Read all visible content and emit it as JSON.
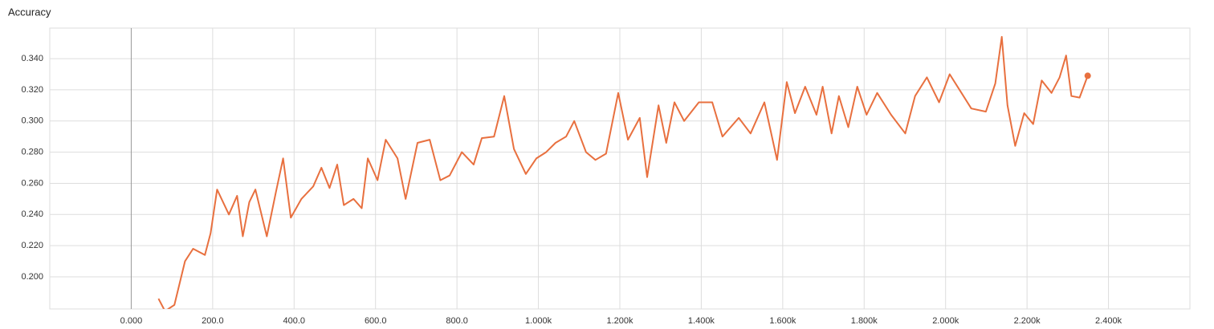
{
  "chart_data": {
    "type": "line",
    "title": "Accuracy",
    "color": "#e8703f",
    "grid": true,
    "x": [
      67,
      83,
      106,
      132,
      152,
      181,
      195,
      211,
      240,
      260,
      274,
      290,
      305,
      333,
      355,
      373,
      392,
      418,
      447,
      467,
      487,
      506,
      522,
      546,
      566,
      581,
      605,
      625,
      654,
      674,
      703,
      733,
      759,
      782,
      812,
      841,
      861,
      891,
      916,
      940,
      969,
      995,
      1019,
      1042,
      1068,
      1088,
      1117,
      1140,
      1166,
      1196,
      1220,
      1249,
      1267,
      1295,
      1314,
      1334,
      1358,
      1394,
      1427,
      1452,
      1492,
      1521,
      1555,
      1586,
      1610,
      1630,
      1655,
      1683,
      1698,
      1720,
      1738,
      1761,
      1783,
      1806,
      1832,
      1866,
      1901,
      1925,
      1954,
      1984,
      2010,
      2039,
      2063,
      2099,
      2122,
      2138,
      2152,
      2171,
      2193,
      2215,
      2236,
      2260,
      2280,
      2296,
      2309,
      2329,
      2349
    ],
    "values": [
      0.186,
      0.178,
      0.182,
      0.21,
      0.218,
      0.214,
      0.228,
      0.256,
      0.24,
      0.252,
      0.226,
      0.248,
      0.256,
      0.226,
      0.254,
      0.276,
      0.238,
      0.25,
      0.258,
      0.27,
      0.257,
      0.272,
      0.246,
      0.25,
      0.244,
      0.276,
      0.262,
      0.288,
      0.276,
      0.25,
      0.286,
      0.288,
      0.262,
      0.265,
      0.28,
      0.272,
      0.289,
      0.29,
      0.316,
      0.282,
      0.266,
      0.276,
      0.28,
      0.286,
      0.29,
      0.3,
      0.28,
      0.275,
      0.279,
      0.318,
      0.288,
      0.302,
      0.264,
      0.31,
      0.286,
      0.312,
      0.3,
      0.312,
      0.312,
      0.29,
      0.302,
      0.292,
      0.312,
      0.275,
      0.325,
      0.305,
      0.322,
      0.304,
      0.322,
      0.292,
      0.316,
      0.296,
      0.322,
      0.304,
      0.318,
      0.304,
      0.292,
      0.316,
      0.328,
      0.312,
      0.33,
      0.318,
      0.308,
      0.306,
      0.324,
      0.354,
      0.31,
      0.284,
      0.305,
      0.298,
      0.326,
      0.318,
      0.328,
      0.342,
      0.316,
      0.315,
      0.329
    ],
    "xlim": [
      -200,
      2600
    ],
    "ylim": [
      0.1794,
      0.3596
    ],
    "xticks": [
      {
        "value": 0,
        "label": "0.000"
      },
      {
        "value": 200,
        "label": "200.0"
      },
      {
        "value": 400,
        "label": "400.0"
      },
      {
        "value": 600,
        "label": "600.0"
      },
      {
        "value": 800,
        "label": "800.0"
      },
      {
        "value": 1000,
        "label": "1.000k"
      },
      {
        "value": 1200,
        "label": "1.200k"
      },
      {
        "value": 1400,
        "label": "1.400k"
      },
      {
        "value": 1600,
        "label": "1.600k"
      },
      {
        "value": 1800,
        "label": "1.800k"
      },
      {
        "value": 2000,
        "label": "2.000k"
      },
      {
        "value": 2200,
        "label": "2.200k"
      },
      {
        "value": 2400,
        "label": "2.400k"
      }
    ],
    "yticks": [
      {
        "value": 0.2,
        "label": "0.200"
      },
      {
        "value": 0.22,
        "label": "0.220"
      },
      {
        "value": 0.24,
        "label": "0.240"
      },
      {
        "value": 0.26,
        "label": "0.260"
      },
      {
        "value": 0.28,
        "label": "0.280"
      },
      {
        "value": 0.3,
        "label": "0.300"
      },
      {
        "value": 0.32,
        "label": "0.320"
      },
      {
        "value": 0.34,
        "label": "0.340"
      }
    ]
  }
}
